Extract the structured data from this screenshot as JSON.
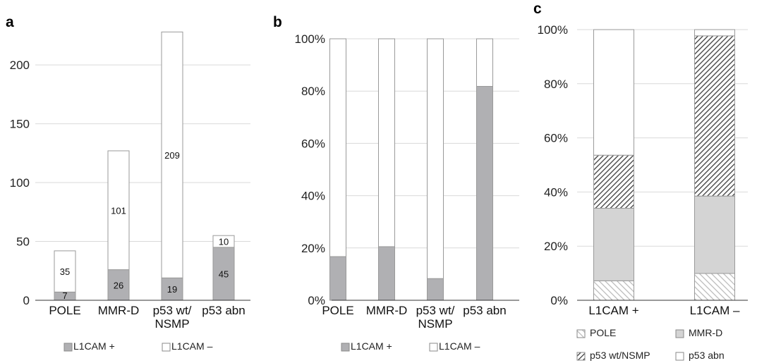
{
  "colors": {
    "l1cam_pos": "#b0b0b3",
    "l1cam_neg": "#ffffff",
    "pole": "hatch-light",
    "mmr_d": "#d4d4d4",
    "p53_wt_nsmp": "hatch-dark",
    "p53_abn": "#ffffff",
    "gridline": "#d9d9d9",
    "bar_outline": "#9a9a9a"
  },
  "chart_data": [
    {
      "panel_label": "a",
      "type": "bar",
      "stacked": true,
      "categories": [
        "POLE",
        "MMR-D",
        "p53 wt/\nNSMP",
        "p53 abn"
      ],
      "series": [
        {
          "name": "L1CAM +",
          "values": [
            7,
            26,
            19,
            45
          ]
        },
        {
          "name": "L1CAM –",
          "values": [
            35,
            101,
            209,
            10
          ]
        }
      ],
      "ylim": [
        0,
        230
      ],
      "yticks": [
        0,
        50,
        100,
        150,
        200
      ],
      "grid": true,
      "legend": "bottom"
    },
    {
      "panel_label": "b",
      "type": "bar",
      "stacked": true,
      "percent": true,
      "categories": [
        "POLE",
        "MMR-D",
        "p53 wt/\nNSMP",
        "p53 abn"
      ],
      "series": [
        {
          "name": "L1CAM +",
          "values": [
            16.7,
            20.5,
            8.3,
            81.8
          ]
        },
        {
          "name": "L1CAM –",
          "values": [
            83.3,
            79.5,
            91.7,
            18.2
          ]
        }
      ],
      "ylim": [
        0,
        100
      ],
      "yticks": [
        "0%",
        "20%",
        "40%",
        "60%",
        "80%",
        "100%"
      ],
      "grid": true,
      "legend": "bottom"
    },
    {
      "panel_label": "c",
      "type": "bar",
      "stacked": true,
      "percent": true,
      "categories": [
        "L1CAM +",
        "L1CAM –"
      ],
      "series": [
        {
          "name": "POLE",
          "values": [
            7.2,
            9.9
          ]
        },
        {
          "name": "MMR-D",
          "values": [
            26.8,
            28.6
          ]
        },
        {
          "name": "p53 wt/NSMP",
          "values": [
            19.6,
            59.2
          ]
        },
        {
          "name": "p53 abn",
          "values": [
            46.4,
            2.3
          ]
        }
      ],
      "ylim": [
        0,
        100
      ],
      "yticks": [
        "0%",
        "20%",
        "40%",
        "60%",
        "80%",
        "100%"
      ],
      "grid": true,
      "legend": "bottom"
    }
  ]
}
